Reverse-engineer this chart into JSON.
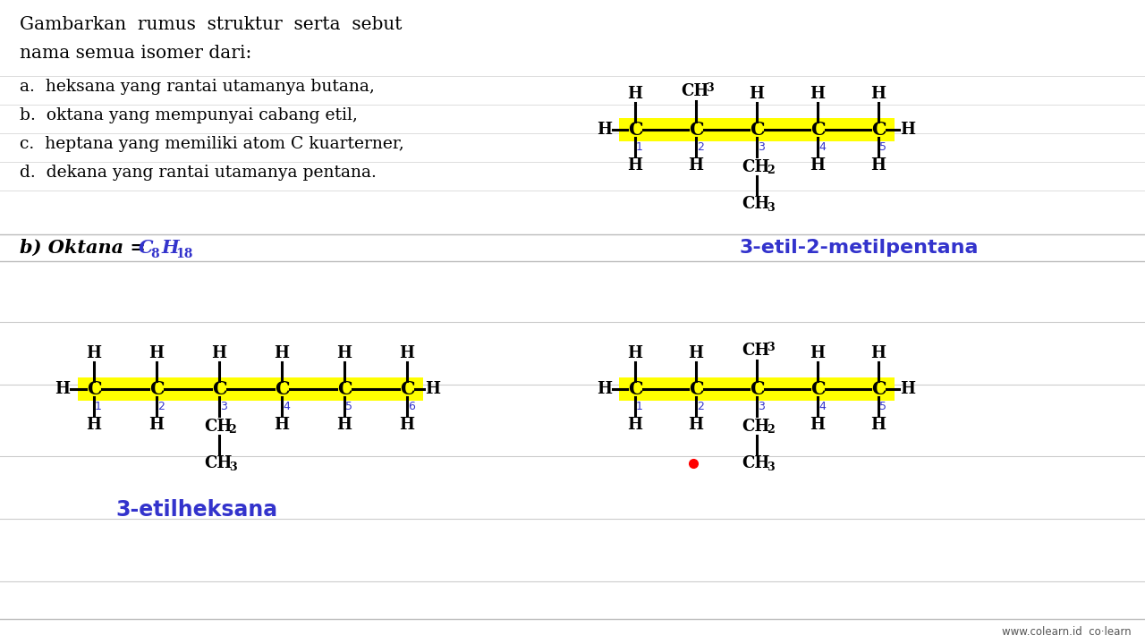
{
  "bg_color": "#d8d8d8",
  "white": "#ffffff",
  "yellow": "#ffff00",
  "blue": "#3333cc",
  "black": "#000000",
  "name1": "3-etil-2-metilpentana",
  "name2": "3-etilheksana",
  "footer": "www.colearn.id  co·learn"
}
